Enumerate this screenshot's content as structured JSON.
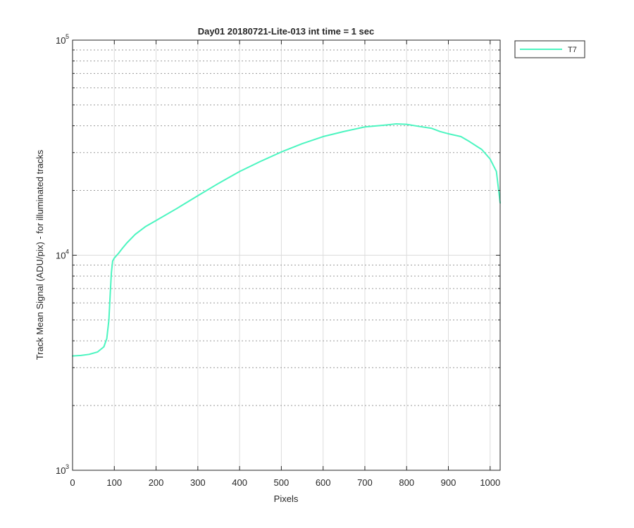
{
  "chart_data": {
    "type": "line",
    "title": "Day01 20180721-Lite-013 int time = 1 sec",
    "xlabel": "Pixels",
    "ylabel": "Track Mean Signal (ADU/pix) - for illuminated tracks",
    "xlim": [
      0,
      1024
    ],
    "ylim": [
      1000,
      100000
    ],
    "yscale": "log",
    "grid": true,
    "legend_location": "outside-top-right",
    "x_ticks": [
      0,
      100,
      200,
      300,
      400,
      500,
      600,
      700,
      800,
      900,
      1000
    ],
    "x_tick_labels": [
      "0",
      "100",
      "200",
      "300",
      "400",
      "500",
      "600",
      "700",
      "800",
      "900",
      "1000"
    ],
    "y_ticks": [
      {
        "value": 1000,
        "base": "10",
        "exp": "3"
      },
      {
        "value": 10000,
        "base": "10",
        "exp": "4"
      },
      {
        "value": 100000,
        "base": "10",
        "exp": "5"
      }
    ],
    "series": [
      {
        "name": "T7",
        "color": "#4cf5c0",
        "x": [
          0,
          20,
          40,
          60,
          75,
          82,
          87,
          90,
          93,
          96,
          100,
          110,
          120,
          130,
          150,
          175,
          200,
          250,
          300,
          350,
          400,
          450,
          500,
          550,
          600,
          650,
          700,
          750,
          775,
          800,
          830,
          860,
          880,
          900,
          930,
          950,
          980,
          1000,
          1015,
          1024
        ],
        "y": [
          3400,
          3420,
          3460,
          3550,
          3750,
          4100,
          5000,
          6500,
          8300,
          9400,
          9700,
          10200,
          10800,
          11400,
          12500,
          13600,
          14500,
          16500,
          18900,
          21600,
          24500,
          27300,
          30200,
          33000,
          35600,
          37600,
          39500,
          40300,
          40800,
          40600,
          39700,
          38900,
          37600,
          36700,
          35600,
          33800,
          31000,
          28000,
          24500,
          17500
        ]
      }
    ]
  }
}
